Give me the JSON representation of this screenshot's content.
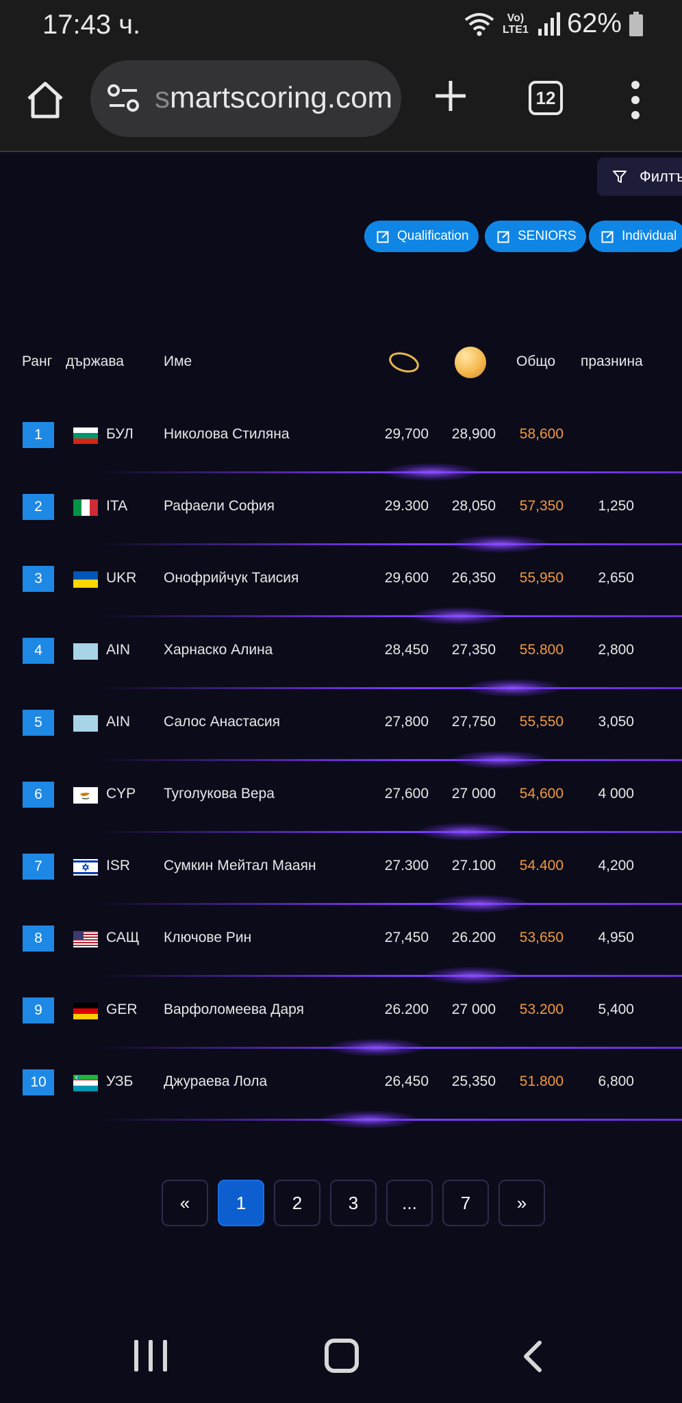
{
  "status_bar": {
    "time": "17:43 ч.",
    "network": "Vo) LTE1",
    "battery": "62%"
  },
  "browser": {
    "url_faded": "s",
    "url_main": "martscoring.com",
    "tab_count": "12"
  },
  "filter": {
    "label": "Филтъ"
  },
  "chips": [
    "Qualification",
    "SENIORS",
    "Individual"
  ],
  "table": {
    "headers": {
      "rank": "Ранг",
      "country": "държава",
      "name": "Име",
      "total": "Общо",
      "gap": "празнина"
    },
    "apparatus_icons": [
      "hoop-icon",
      "ball-icon"
    ],
    "rows": [
      {
        "rank": "1",
        "flag": "bulgaria",
        "country": "БУЛ",
        "name": "Николова Стиляна",
        "hoop": "29,700",
        "ball": "28,900",
        "total": "58,600",
        "gap": ""
      },
      {
        "rank": "2",
        "flag": "italy",
        "country": "ITA",
        "name": "Рафаели София",
        "hoop": "29.300",
        "ball": "28,050",
        "total": "57,350",
        "gap": "1,250"
      },
      {
        "rank": "3",
        "flag": "ukraine",
        "country": "UKR",
        "name": "Онофрийчук Таисия",
        "hoop": "29,600",
        "ball": "26,350",
        "total": "55,950",
        "gap": "2,650"
      },
      {
        "rank": "4",
        "flag": "ain",
        "country": "AIN",
        "name": "Харнаско Алина",
        "hoop": "28,450",
        "ball": "27,350",
        "total": "55.800",
        "gap": "2,800"
      },
      {
        "rank": "5",
        "flag": "ain",
        "country": "AIN",
        "name": "Салос Анастасия",
        "hoop": "27,800",
        "ball": "27,750",
        "total": "55,550",
        "gap": "3,050"
      },
      {
        "rank": "6",
        "flag": "cyprus",
        "country": "CYP",
        "name": "Туголукова Вера",
        "hoop": "27,600",
        "ball": "27 000",
        "total": "54,600",
        "gap": "4 000"
      },
      {
        "rank": "7",
        "flag": "israel",
        "country": "ISR",
        "name": "Сумкин Мейтал Мааян",
        "hoop": "27.300",
        "ball": "27.100",
        "total": "54.400",
        "gap": "4,200"
      },
      {
        "rank": "8",
        "flag": "usa",
        "country": "САЩ",
        "name": "Ключове Рин",
        "hoop": "27,450",
        "ball": "26.200",
        "total": "53,650",
        "gap": "4,950"
      },
      {
        "rank": "9",
        "flag": "germany",
        "country": "GER",
        "name": "Варфоломеева Даря",
        "hoop": "26.200",
        "ball": "27 000",
        "total": "53.200",
        "gap": "5,400"
      },
      {
        "rank": "10",
        "flag": "uzbekistan",
        "country": "УЗБ",
        "name": "Джураева Лола",
        "hoop": "26,450",
        "ball": "25,350",
        "total": "51.800",
        "gap": "6,800"
      }
    ]
  },
  "pagination": {
    "first": "«",
    "pages": [
      "1",
      "2",
      "3",
      "...",
      "7"
    ],
    "last": "»",
    "active": "1"
  },
  "colors": {
    "background": "#0b0b1a",
    "chip": "#0f86e6",
    "total": "#f39a3b",
    "rank": "#1e88e5",
    "active_page": "#0d5fd0"
  }
}
